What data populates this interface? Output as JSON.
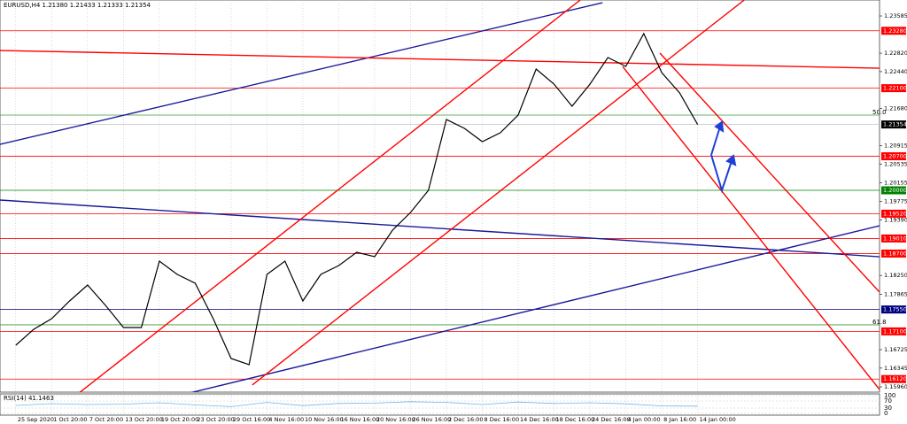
{
  "chart_data": {
    "type": "line",
    "title": "EURUSD,H4  1.21380 1.21433 1.21333 1.21354",
    "xlim": [
      -0.44,
      24.07
    ],
    "ylim": [
      1.15851,
      1.23913
    ],
    "xticks": [
      {
        "value": 0,
        "label": "25 Sep 2020"
      },
      {
        "value": 1,
        "label": "1 Oct 20:00"
      },
      {
        "value": 2,
        "label": "7 Oct 20:00"
      },
      {
        "value": 3,
        "label": "13 Oct 20:00"
      },
      {
        "value": 4,
        "label": "19 Oct 20:00"
      },
      {
        "value": 5,
        "label": "23 Oct 20:00"
      },
      {
        "value": 6,
        "label": "29 Oct 16:00"
      },
      {
        "value": 7,
        "label": "4 Nov 16:00"
      },
      {
        "value": 8,
        "label": "10 Nov 16:00"
      },
      {
        "value": 9,
        "label": "16 Nov 16:00"
      },
      {
        "value": 10,
        "label": "20 Nov 16:00"
      },
      {
        "value": 11,
        "label": "26 Nov 16:00"
      },
      {
        "value": 12,
        "label": "2 Dec 16:00"
      },
      {
        "value": 13,
        "label": "8 Dec 16:00"
      },
      {
        "value": 14,
        "label": "14 Dec 16:00"
      },
      {
        "value": 15,
        "label": "18 Dec 16:00"
      },
      {
        "value": 16,
        "label": "24 Dec 16:00"
      },
      {
        "value": 17,
        "label": "4 Jan 00:00"
      },
      {
        "value": 18,
        "label": "8 Jan 16:00"
      },
      {
        "value": 19,
        "label": "14 Jan 00:00"
      }
    ],
    "yticks": [
      1.23585,
      {
        "value": 1.2282,
        "label": "1.22820"
      },
      {
        "value": 1.2244,
        "label": "1.22440"
      },
      {
        "value": 1.2168,
        "label": "1.21680"
      },
      1.20915,
      1.20535,
      1.20155,
      1.19775,
      {
        "value": 1.1939,
        "label": "1.19390"
      },
      {
        "value": 1.1825,
        "label": "1.18250"
      },
      1.17865,
      1.16725,
      1.16345,
      {
        "value": 1.1596,
        "label": "1.15960"
      }
    ],
    "grid": true,
    "series": [
      {
        "color": "#000000",
        "x": [
          0,
          0.5,
          1,
          1.5,
          2,
          2.5,
          3,
          3.5,
          4,
          4.5,
          5,
          5.5,
          6,
          6.5,
          7,
          7.5,
          8,
          8.5,
          9,
          9.5,
          10,
          10.5,
          11,
          11.5,
          12,
          12.5,
          13,
          13.5,
          14,
          14.5,
          15,
          15.5,
          16,
          16.5,
          17,
          17.5,
          18,
          18.5,
          19
        ],
        "values": [
          1.16815,
          1.17143,
          1.17361,
          1.17725,
          1.18053,
          1.17634,
          1.17179,
          1.17179,
          1.18544,
          1.18271,
          1.18089,
          1.17361,
          1.16542,
          1.16415,
          1.18271,
          1.18544,
          1.17725,
          1.18271,
          1.18453,
          1.18726,
          1.18635,
          1.19181,
          1.19545,
          1.2,
          1.21456,
          1.21274,
          1.21001,
          1.21183,
          1.21547,
          1.22493,
          1.22184,
          1.21729,
          1.22184,
          1.2273,
          1.22548,
          1.23221,
          1.2242,
          1.22002,
          1.21354
        ]
      }
    ],
    "levels": [
      {
        "value": 1.2328,
        "label": "1.23280",
        "color": "#ff0000"
      },
      {
        "value": 1.221,
        "label": "1.22100",
        "color": "#ff0000"
      },
      {
        "value": 1.21354,
        "label": "1.21354",
        "color": "#000000"
      },
      {
        "value": 1.207,
        "label": "1.20700",
        "color": "#ff0000"
      },
      {
        "value": 1.2,
        "label": "1.20000",
        "color": "#008000"
      },
      {
        "value": 1.1952,
        "label": "1.19520",
        "color": "#ff0000"
      },
      {
        "value": 1.1901,
        "label": "1.19010",
        "color": "#ff0000"
      },
      {
        "value": 1.187,
        "label": "1.18700",
        "color": "#ff0000"
      },
      {
        "value": 1.1755,
        "label": "1.17550",
        "color": "#000080"
      },
      {
        "value": 1.171,
        "label": "1.17100",
        "color": "#ff0000"
      },
      {
        "value": 1.1612,
        "label": "1.16120",
        "color": "#ff0000"
      }
    ],
    "fibo_levels": [
      {
        "value": 1.21547,
        "label": "50.0",
        "color": "#3a9a3a"
      },
      {
        "value": 1.17235,
        "label": "61.8",
        "color": "#3a9a3a"
      }
    ],
    "trend_lines": [
      {
        "color": "#1a1a9a",
        "x": [
          -0.44,
          16.35
        ],
        "values": [
          1.20946,
          1.23858
        ]
      },
      {
        "color": "#1a1a9a",
        "x": [
          -0.44,
          24.07
        ],
        "values": [
          1.198,
          1.18635
        ]
      },
      {
        "color": "#1a1a9a",
        "x": [
          4.74,
          24.07
        ],
        "values": [
          1.15815,
          1.19272
        ]
      },
      {
        "color": "#ff0000",
        "x": [
          1.73,
          15.73
        ],
        "values": [
          1.15815,
          1.23913
        ]
      },
      {
        "color": "#ff0000",
        "x": [
          6.59,
          20.3
        ],
        "values": [
          1.15997,
          1.23913
        ]
      },
      {
        "color": "#ff0000",
        "x": [
          -0.44,
          24.07
        ],
        "values": [
          1.22875,
          1.22511
        ]
      },
      {
        "color": "#ff0000",
        "x": [
          17.95,
          24.07
        ],
        "values": [
          1.22821,
          1.17907
        ]
      },
      {
        "color": "#ff0000",
        "x": [
          16.91,
          24.07
        ],
        "values": [
          1.22548,
          1.15905
        ]
      }
    ],
    "rsi": {
      "label": "RSI(14) 41.1463",
      "color": "#6fb7e8",
      "ylim": [
        0,
        100
      ],
      "yticks": [
        0,
        30,
        70,
        100
      ],
      "x": [
        0,
        1,
        2,
        3,
        4,
        5,
        6,
        7,
        8,
        9,
        10,
        11,
        12,
        13,
        14,
        15,
        16,
        17,
        18,
        19
      ],
      "values": [
        45,
        55,
        50,
        52,
        60,
        48,
        38,
        62,
        44,
        56,
        58,
        66,
        62,
        50,
        64,
        56,
        60,
        54,
        42,
        41.1463
      ]
    }
  }
}
